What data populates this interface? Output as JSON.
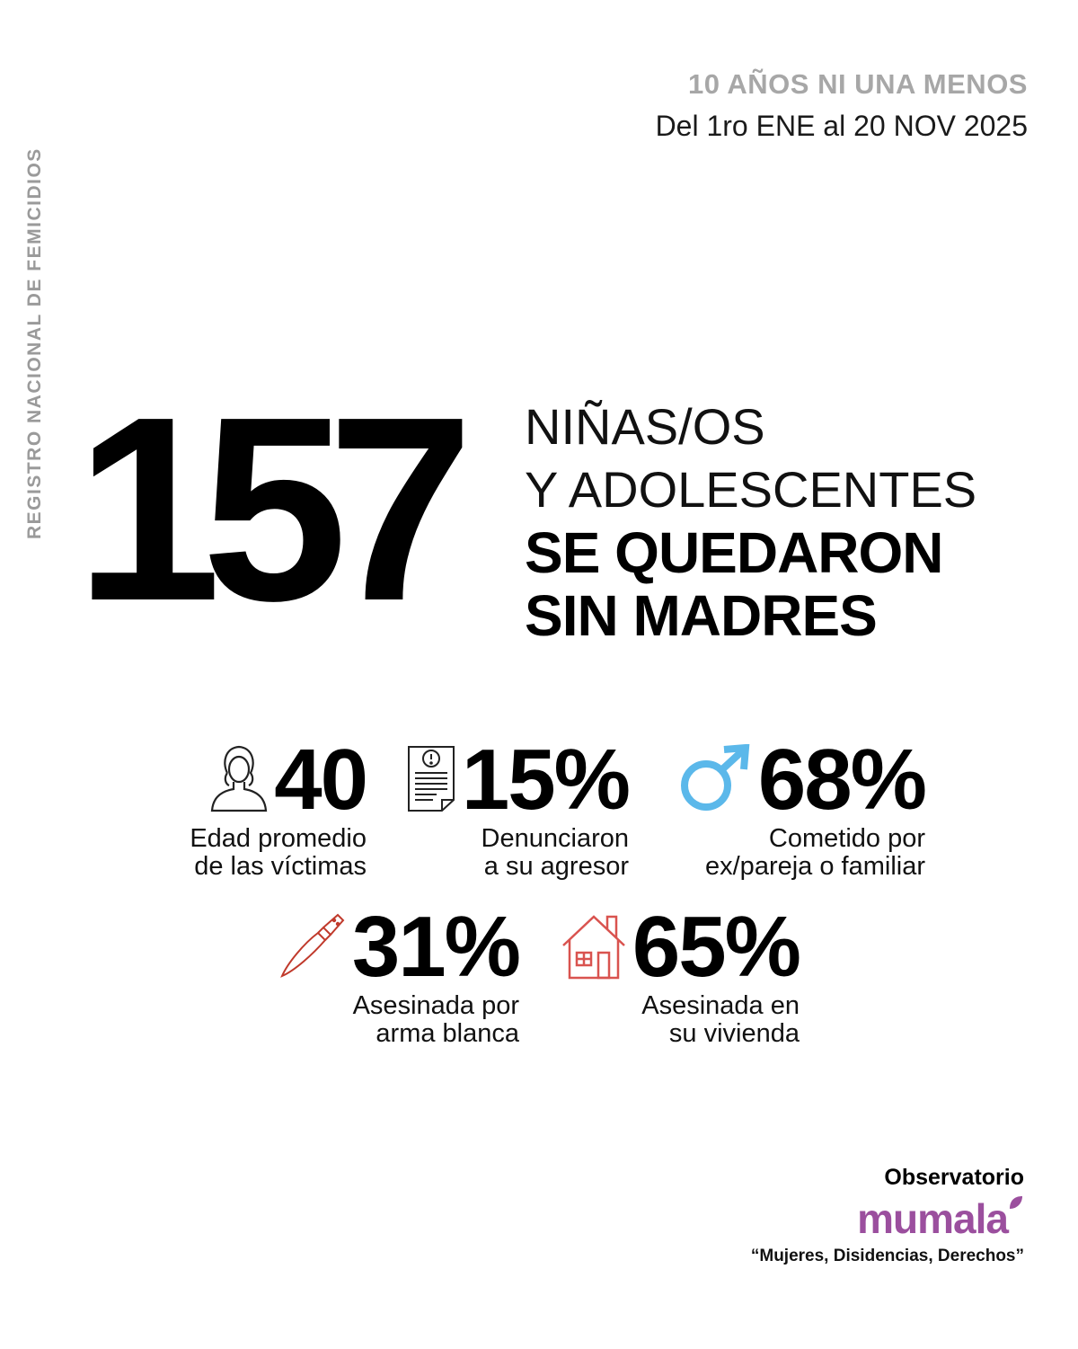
{
  "side_label": "REGISTRO NACIONAL DE FEMICIDIOS",
  "header": {
    "title": "10 AÑOS NI UNA MENOS",
    "date_prefix": "Del ",
    "date_main": "1ro ENE al 20 NOV 2025"
  },
  "main": {
    "number": "157",
    "line1": "NIÑAS/OS",
    "line2": "Y ADOLESCENTES",
    "line3": "SE QUEDARON",
    "line4": "SIN MADRES"
  },
  "stats": [
    {
      "value": "40",
      "caption1": "Edad promedio",
      "caption2": "de las víctimas",
      "icon": "woman-icon"
    },
    {
      "value": "15%",
      "caption1": "Denunciaron",
      "caption2": "a su agresor",
      "icon": "complaint-document-icon"
    },
    {
      "value": "68%",
      "caption1": "Cometido por",
      "caption2": "ex/pareja o familiar",
      "icon": "male-symbol-icon"
    },
    {
      "value": "31%",
      "caption1": "Asesinada por",
      "caption2": "arma blanca",
      "icon": "knife-icon"
    },
    {
      "value": "65%",
      "caption1": "Asesinada en",
      "caption2": "su vivienda",
      "icon": "house-icon"
    }
  ],
  "footer": {
    "observatory": "Observatorio",
    "brand": "mumala",
    "tagline": "“Mujeres, Disidencias, Derechos”"
  },
  "colors": {
    "male_icon": "#5bb8ea",
    "red_icons": "#d9534f",
    "brand": "#9b4f9e",
    "grey_text": "#a7a7a7"
  }
}
